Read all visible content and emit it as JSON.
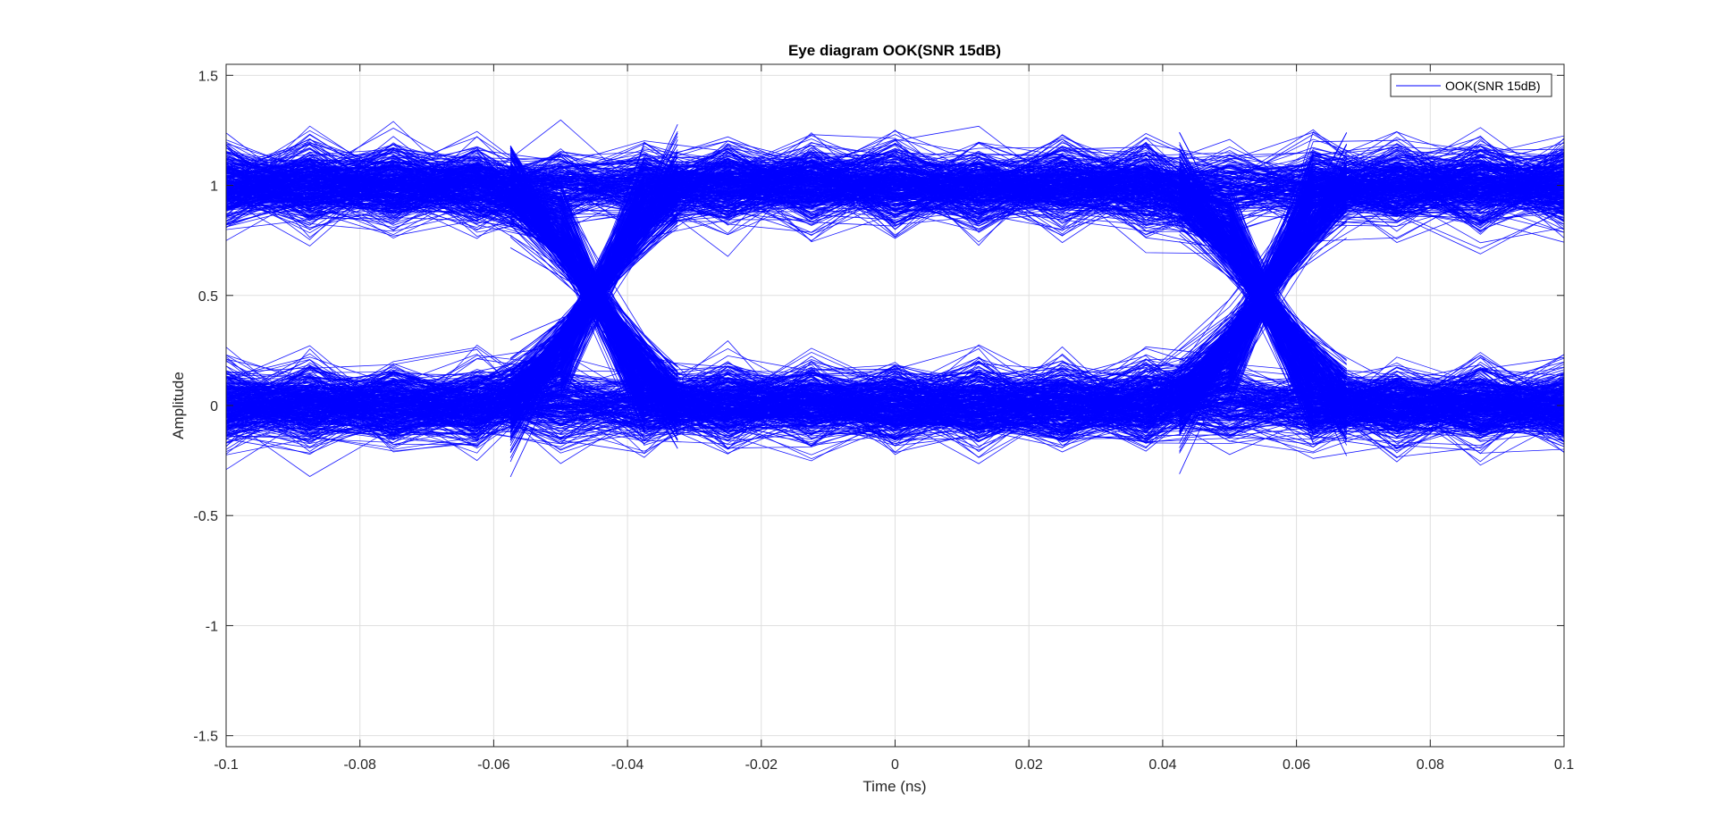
{
  "chart_data": {
    "type": "line",
    "title": "Eye diagram OOK(SNR 15dB)",
    "xlabel": "Time (ns)",
    "ylabel": "Amplitude",
    "xlim": [
      -0.1,
      0.1
    ],
    "ylim": [
      -1.55,
      1.55
    ],
    "xticks": [
      -0.1,
      -0.08,
      -0.06,
      -0.04,
      -0.02,
      0,
      0.02,
      0.04,
      0.06,
      0.08,
      0.1
    ],
    "xtick_labels": [
      "-0.1",
      "-0.08",
      "-0.06",
      "-0.04",
      "-0.02",
      "0",
      "0.02",
      "0.04",
      "0.06",
      "0.08",
      "0.1"
    ],
    "yticks": [
      -1.5,
      -1,
      -0.5,
      0,
      0.5,
      1,
      1.5
    ],
    "ytick_labels": [
      "-1.5",
      "-1",
      "-0.5",
      "0",
      "0.5",
      "1",
      "1.5"
    ],
    "grid": true,
    "legend_position": "top-right",
    "series": [
      {
        "name": "OOK(SNR 15dB)",
        "color": "#0000ff",
        "levels": [
          0,
          1
        ],
        "noise_peak_deviation": 0.45,
        "symbol_period": 0.1,
        "transition_times": [
          -0.045,
          0.055
        ],
        "crossing_level": 0.5,
        "sample_times": [
          -0.1,
          -0.0875,
          -0.075,
          -0.0625,
          -0.05,
          -0.0375,
          -0.025,
          -0.0125,
          0,
          0.0125,
          0.025,
          0.0375,
          0.05,
          0.0625,
          0.075,
          0.0875,
          0.1
        ]
      }
    ]
  }
}
